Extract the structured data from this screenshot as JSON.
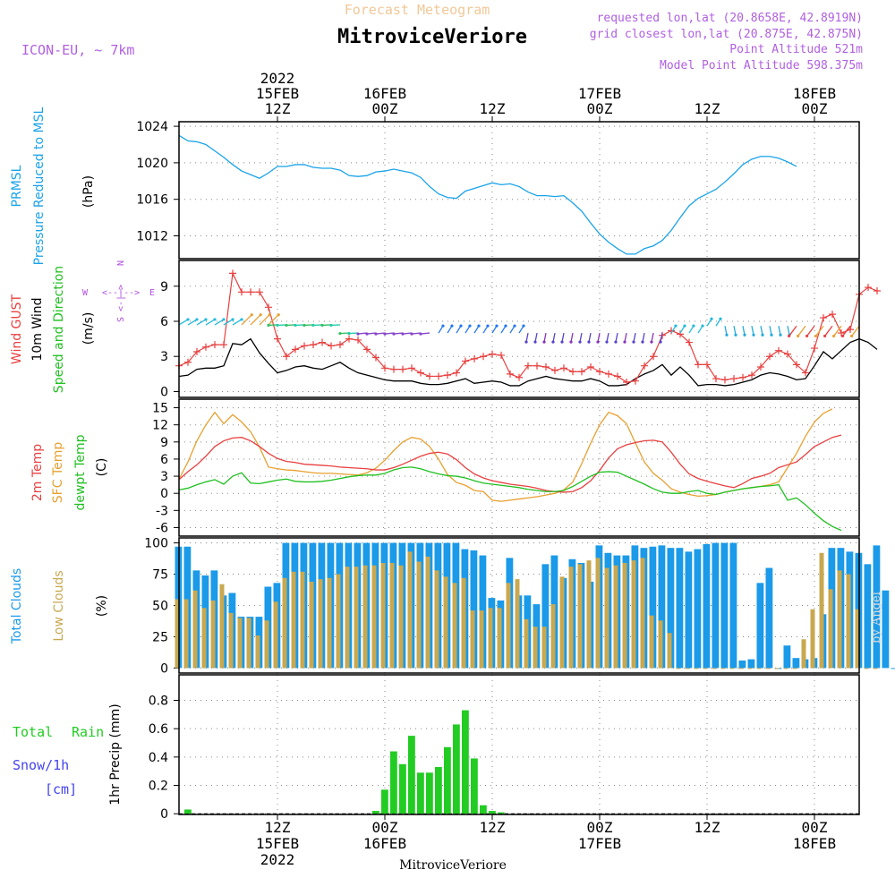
{
  "header": {
    "super_title": "Forecast Meteogram",
    "station": "MitroviceVeriore",
    "model": "ICON-EU, ~ 7km",
    "requested": "requested lon,lat (20.8658E, 42.8919N)",
    "closest": "grid closest lon,lat (20.875E, 42.875N)",
    "point_alt": "Point Altitude 521m",
    "model_alt": "Model Point Altitude 598.375m",
    "footer_station": "MitroviceVeriore",
    "watermark": "by Angel"
  },
  "colors": {
    "pressure": "#1aa3e8",
    "gust": "#e84040",
    "wind": "#000000",
    "temp": "#e84040",
    "sfc": "#e8a030",
    "dew": "#20c020",
    "total_cloud": "#1a9ae8",
    "low_cloud": "#c8a850",
    "rain": "#22cc22",
    "snow": "#4444ee",
    "header_purple": "#b060e0",
    "wind_legend": "#b050e0"
  },
  "time_axis": {
    "top_labels": [
      {
        "line1": "2022",
        "line2": "15FEB",
        "line3": "12Z",
        "hour": 12
      },
      {
        "line1": "",
        "line2": "16FEB",
        "line3": "00Z",
        "hour": 24
      },
      {
        "line1": "",
        "line2": "",
        "line3": "12Z",
        "hour": 36
      },
      {
        "line1": "",
        "line2": "17FEB",
        "line3": "00Z",
        "hour": 48
      },
      {
        "line1": "",
        "line2": "",
        "line3": "12Z",
        "hour": 60
      },
      {
        "line1": "",
        "line2": "18FEB",
        "line3": "00Z",
        "hour": 72
      }
    ],
    "bottom_labels": [
      {
        "line1": "12Z",
        "line2": "15FEB",
        "line3": "2022",
        "hour": 12
      },
      {
        "line1": "00Z",
        "line2": "16FEB",
        "line3": "",
        "hour": 24
      },
      {
        "line1": "12Z",
        "line2": "",
        "line3": "",
        "hour": 36
      },
      {
        "line1": "00Z",
        "line2": "17FEB",
        "line3": "",
        "hour": 48
      },
      {
        "line1": "12Z",
        "line2": "",
        "line3": "",
        "hour": 60
      },
      {
        "line1": "00Z",
        "line2": "18FEB",
        "line3": "",
        "hour": 72
      }
    ],
    "hour_range": [
      1,
      77
    ]
  },
  "panels": {
    "pressure": {
      "label1": "PRMSL",
      "label2": "Pressure Reduced to MSL",
      "unit": "(hPa)"
    },
    "wind": {
      "label1": "Wind GUST",
      "label2": "10m Wind",
      "label3": "Speed and Direction",
      "unit": "(m/s)",
      "compass_w": "W",
      "compass_e": "E",
      "compass_n": "N",
      "compass_s": "S"
    },
    "temp": {
      "label1": "2m Temp",
      "label2": "SFC Temp",
      "label3": "dewpt Temp",
      "unit": "(C)"
    },
    "cloud": {
      "label1": "Total Clouds",
      "label2": "Low Clouds",
      "unit": "(%)"
    },
    "precip": {
      "label1": "Total",
      "label2": "Rain",
      "label3": "Snow/1h",
      "label4": "[cm]",
      "unit": "1hr Precip (mm)"
    }
  },
  "chart_data": [
    {
      "type": "line",
      "name": "PRMSL",
      "ylim": [
        1009.5,
        1024.5
      ],
      "yticks": [
        1012,
        1016,
        1020,
        1024
      ],
      "x_hours_start": 1,
      "values": [
        1023.0,
        1022.4,
        1022.3,
        1022.0,
        1021.3,
        1020.6,
        1019.8,
        1019.1,
        1018.7,
        1018.3,
        1018.9,
        1019.6,
        1019.6,
        1019.8,
        1019.8,
        1019.5,
        1019.4,
        1019.4,
        1019.2,
        1018.6,
        1018.5,
        1018.6,
        1019.0,
        1019.1,
        1019.3,
        1019.1,
        1018.9,
        1018.4,
        1017.4,
        1016.6,
        1016.2,
        1016.1,
        1016.9,
        1017.2,
        1017.5,
        1017.8,
        1017.6,
        1017.7,
        1017.4,
        1016.8,
        1016.4,
        1016.4,
        1016.3,
        1016.4,
        1015.6,
        1014.7,
        1013.4,
        1012.2,
        1011.3,
        1010.6,
        1010.0,
        1010.0,
        1010.6,
        1010.9,
        1011.5,
        1012.6,
        1014.0,
        1015.3,
        1016.1,
        1016.6,
        1017.1,
        1017.9,
        1018.8,
        1019.8,
        1020.4,
        1020.7,
        1020.7,
        1020.5,
        1020.1,
        1019.6
      ]
    },
    {
      "type": "line",
      "name": "Wind",
      "ylim": [
        -0.5,
        11.2
      ],
      "yticks": [
        0,
        3,
        6,
        9
      ],
      "x_hours_start": 1,
      "gust": [
        2.2,
        2.5,
        3.4,
        3.8,
        4.0,
        4.0,
        10.1,
        8.5,
        8.5,
        8.5,
        7.2,
        4.5,
        3.0,
        3.6,
        3.9,
        4.0,
        4.2,
        3.9,
        4.0,
        4.5,
        4.4,
        3.6,
        2.9,
        2.0,
        1.9,
        1.9,
        2.0,
        1.6,
        1.3,
        1.3,
        1.4,
        1.6,
        2.6,
        2.8,
        3.0,
        3.2,
        3.1,
        1.5,
        1.2,
        2.2,
        2.2,
        2.1,
        1.8,
        2.0,
        1.7,
        1.7,
        2.1,
        1.7,
        1.5,
        1.3,
        0.8,
        0.9,
        2.2,
        3.0,
        4.8,
        5.2,
        4.9,
        4.2,
        2.3,
        2.3,
        1.1,
        1.0,
        1.1,
        1.2,
        1.4,
        2.1,
        3.0,
        3.5,
        3.2,
        2.3,
        1.6,
        3.7,
        6.3,
        6.6,
        5.0,
        5.3,
        8.3,
        8.9,
        8.6
      ],
      "wind": [
        1.3,
        1.4,
        1.9,
        2.0,
        2.0,
        2.2,
        4.1,
        4.0,
        4.5,
        3.3,
        2.4,
        1.6,
        1.8,
        2.1,
        2.2,
        2.0,
        1.9,
        2.2,
        2.5,
        2.0,
        1.6,
        1.4,
        1.2,
        1.0,
        0.9,
        0.9,
        0.9,
        0.7,
        0.6,
        0.6,
        0.7,
        0.9,
        1.1,
        0.7,
        0.8,
        0.9,
        0.8,
        0.5,
        0.5,
        0.9,
        1.1,
        1.3,
        1.1,
        1.0,
        0.9,
        0.9,
        1.1,
        0.9,
        0.5,
        0.5,
        0.6,
        1.1,
        1.5,
        1.8,
        2.3,
        1.4,
        2.1,
        1.4,
        0.5,
        0.6,
        0.6,
        0.5,
        0.6,
        0.8,
        1.0,
        1.4,
        1.6,
        1.5,
        1.3,
        1.0,
        1.1,
        2.2,
        3.4,
        2.8,
        3.5,
        4.2,
        4.5,
        4.2,
        3.6
      ]
    },
    {
      "type": "line",
      "name": "Temperature",
      "ylim": [
        -7.5,
        16.5
      ],
      "yticks": [
        -6,
        -3,
        0,
        3,
        6,
        9,
        12,
        15
      ],
      "x_hours_start": 1,
      "t2m": [
        2.4,
        3.8,
        5.0,
        6.5,
        8.2,
        9.2,
        9.7,
        9.8,
        9.2,
        8.2,
        7.0,
        6.1,
        5.6,
        5.4,
        5.1,
        5.0,
        4.9,
        4.8,
        4.6,
        4.5,
        4.4,
        4.3,
        4.1,
        4.1,
        4.5,
        5.1,
        5.8,
        6.5,
        7.0,
        7.2,
        6.9,
        5.9,
        4.5,
        3.4,
        2.7,
        2.2,
        1.9,
        1.6,
        1.4,
        1.2,
        0.9,
        0.5,
        0.3,
        0.2,
        0.3,
        1.0,
        2.2,
        4.0,
        6.2,
        7.8,
        8.5,
        8.9,
        9.2,
        9.3,
        9.0,
        7.2,
        5.1,
        3.4,
        2.6,
        2.1,
        1.7,
        1.3,
        1.0,
        1.7,
        2.6,
        3.0,
        3.5,
        4.5,
        5.0,
        5.5,
        6.8,
        8.2,
        9.0,
        9.8,
        10.2
      ],
      "sfc": [
        2.5,
        5.5,
        9.2,
        12.0,
        14.2,
        12.2,
        13.8,
        12.5,
        10.8,
        8.1,
        4.6,
        4.3,
        4.1,
        4.0,
        3.8,
        3.6,
        3.5,
        3.5,
        3.4,
        3.3,
        3.2,
        3.6,
        4.4,
        5.8,
        7.5,
        9.0,
        9.8,
        9.5,
        8.2,
        6.0,
        3.3,
        1.9,
        1.4,
        0.5,
        0.3,
        -1.2,
        -1.4,
        -1.2,
        -1.0,
        -0.8,
        -0.6,
        -0.3,
        0.0,
        0.6,
        2.0,
        5.2,
        8.8,
        12.0,
        14.2,
        13.6,
        12.2,
        8.8,
        5.5,
        3.5,
        2.3,
        0.8,
        0.2,
        -0.2,
        -0.5,
        -0.4,
        -0.2,
        0.2,
        0.5,
        0.8,
        1.0,
        1.2,
        1.5,
        2.0,
        4.5,
        7.0,
        10.0,
        12.5,
        14.0,
        14.8
      ],
      "dew": [
        0.6,
        0.9,
        1.5,
        2.0,
        2.4,
        1.6,
        3.0,
        3.6,
        1.8,
        1.7,
        2.0,
        2.3,
        2.5,
        2.1,
        2.0,
        2.0,
        2.1,
        2.3,
        2.6,
        2.9,
        3.1,
        3.2,
        3.2,
        3.5,
        4.1,
        4.5,
        4.6,
        4.3,
        3.8,
        3.4,
        3.1,
        3.0,
        2.7,
        2.2,
        1.8,
        1.6,
        1.4,
        1.2,
        1.0,
        0.7,
        0.5,
        0.3,
        0.3,
        0.5,
        1.2,
        2.1,
        3.0,
        3.7,
        3.8,
        3.7,
        3.0,
        2.3,
        1.6,
        0.8,
        0.2,
        0.0,
        0.0,
        0.3,
        0.5,
        0.0,
        -0.2,
        0.2,
        0.5,
        0.8,
        1.0,
        1.2,
        1.3,
        1.5,
        -1.2,
        -0.8,
        -2.0,
        -3.5,
        -4.8,
        -5.8,
        -6.5
      ]
    },
    {
      "type": "bar",
      "name": "Clouds",
      "ylim": [
        -4,
        104
      ],
      "yticks": [
        0,
        25,
        50,
        75,
        100
      ],
      "x_hours_start": 1,
      "total": [
        97,
        97,
        78,
        74,
        78,
        58,
        60,
        41,
        41,
        41,
        65,
        68,
        100,
        100,
        100,
        100,
        100,
        100,
        100,
        100,
        100,
        100,
        100,
        100,
        100,
        100,
        100,
        100,
        100,
        100,
        100,
        100,
        95,
        94,
        90,
        56,
        54,
        88,
        58,
        58,
        51,
        83,
        90,
        72,
        87,
        84,
        69,
        98,
        92,
        90,
        90,
        98,
        96,
        97,
        98,
        96,
        96,
        93,
        95,
        99,
        100,
        100,
        100,
        6,
        7,
        68,
        80,
        0,
        18,
        8,
        7,
        8,
        43,
        96,
        96,
        93,
        92,
        83,
        98,
        62,
        0
      ],
      "low": [
        55,
        55,
        62,
        48,
        54,
        67,
        44,
        40,
        40,
        26,
        38,
        53,
        72,
        77,
        77,
        69,
        71,
        72,
        75,
        81,
        81,
        82,
        82,
        84,
        84,
        82,
        93,
        85,
        89,
        78,
        73,
        68,
        72,
        46,
        46,
        48,
        48,
        68,
        71,
        39,
        33,
        33,
        51,
        73,
        81,
        83,
        86,
        88,
        80,
        82,
        84,
        86,
        88,
        42,
        38,
        28,
        0,
        0,
        0,
        0,
        0,
        0,
        0,
        0,
        0,
        0,
        0,
        0,
        0,
        0,
        23,
        47,
        92,
        63,
        78,
        75,
        47,
        0,
        0
      ]
    },
    {
      "type": "bar",
      "name": "Precipitation",
      "ylim": [
        -0.005,
        0.98
      ],
      "yticks": [
        0,
        0.2,
        0.4,
        0.6,
        0.8
      ],
      "x_hours_start": 1,
      "rain": [
        0,
        0.03,
        0,
        0,
        0,
        0,
        0,
        0,
        0,
        0,
        0,
        0,
        0,
        0,
        0,
        0,
        0,
        0,
        0,
        0,
        0,
        0,
        0.02,
        0.17,
        0.44,
        0.35,
        0.55,
        0.29,
        0.29,
        0.33,
        0.47,
        0.63,
        0.73,
        0.39,
        0.06,
        0.02,
        0.01,
        0,
        0,
        0,
        0,
        0,
        0,
        0,
        0,
        0,
        0,
        0,
        0,
        0,
        0,
        0,
        0,
        0,
        0,
        0,
        0,
        0,
        0,
        0,
        0,
        0,
        0,
        0,
        0,
        0,
        0,
        0,
        0,
        0,
        0,
        0,
        0,
        0,
        0,
        0,
        0
      ]
    }
  ]
}
